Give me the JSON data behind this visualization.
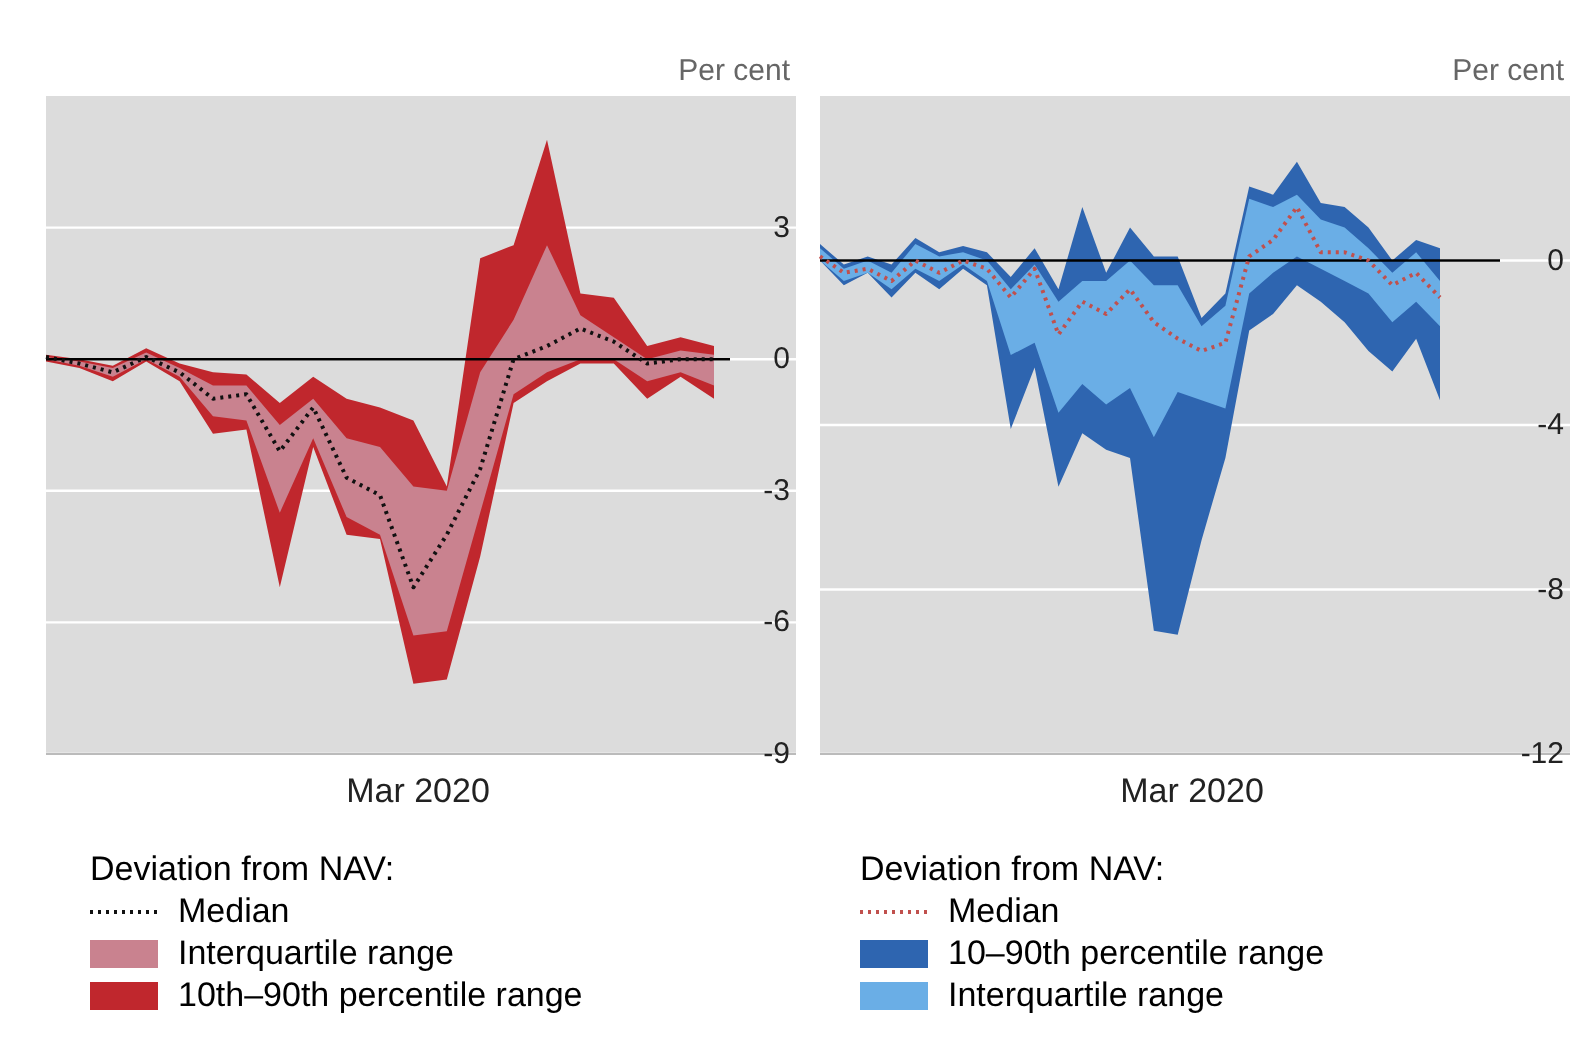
{
  "chart_data": [
    {
      "type": "area",
      "ylabel": "Per cent",
      "xlabel": "Mar 2020",
      "legend_title": "Deviation from NAV:",
      "legend": "bottom",
      "grid": true,
      "categories": [
        null,
        null,
        null,
        null,
        null,
        null,
        null,
        null,
        null,
        null,
        null,
        null,
        null,
        null,
        null,
        null,
        null,
        null,
        null,
        null,
        null
      ],
      "ylim": [
        -9,
        6
      ],
      "yticks": [
        -9,
        -6,
        -3,
        0,
        3
      ],
      "ref_lines": [
        {
          "axis": "y",
          "value": 0,
          "color": "#000000"
        }
      ],
      "series": [
        {
          "name": "Median",
          "type": "line",
          "line_style": "dotted",
          "color": "#111111",
          "values": [
            0.05,
            -0.1,
            -0.3,
            0.05,
            -0.3,
            -0.9,
            -0.8,
            -2.1,
            -1.1,
            -2.7,
            -3.1,
            -5.2,
            -4.0,
            -2.5,
            0,
            0.3,
            0.7,
            0.4,
            -0.1,
            0,
            0
          ]
        },
        {
          "name": "Interquartile range",
          "type": "line",
          "color": "#c9828f",
          "values": [
            null,
            null,
            null,
            null,
            null,
            null,
            null,
            null,
            null,
            null,
            null,
            null,
            null,
            null,
            null,
            null,
            null,
            null,
            null,
            null,
            null
          ],
          "lower": [
            0,
            -0.15,
            -0.4,
            0,
            -0.4,
            -1.3,
            -1.4,
            -3.5,
            -1.8,
            -3.6,
            -4.0,
            -6.3,
            -6.2,
            -3.5,
            -0.8,
            -0.3,
            0,
            0,
            -0.5,
            -0.3,
            -0.6
          ],
          "upper": [
            0.05,
            -0.05,
            -0.2,
            0.15,
            -0.2,
            -0.6,
            -0.6,
            -1.5,
            -0.9,
            -1.8,
            -2.0,
            -2.9,
            -3.0,
            -0.3,
            0.9,
            2.6,
            1.0,
            0.5,
            0,
            0.2,
            0.1
          ]
        },
        {
          "name": "10th–90th percentile range",
          "type": "line",
          "color": "#c0272d",
          "values": [
            null,
            null,
            null,
            null,
            null,
            null,
            null,
            null,
            null,
            null,
            null,
            null,
            null,
            null,
            null,
            null,
            null,
            null,
            null,
            null,
            null
          ],
          "lower": [
            -0.05,
            -0.2,
            -0.5,
            -0.05,
            -0.5,
            -1.7,
            -1.6,
            -5.2,
            -2.0,
            -4.0,
            -4.1,
            -7.4,
            -7.3,
            -4.5,
            -1.0,
            -0.5,
            -0.1,
            -0.1,
            -0.9,
            -0.4,
            -0.9
          ],
          "upper": [
            0.1,
            0,
            -0.15,
            0.25,
            -0.1,
            -0.3,
            -0.35,
            -1.0,
            -0.4,
            -0.9,
            -1.1,
            -1.4,
            -2.9,
            2.3,
            2.6,
            5.0,
            1.5,
            1.4,
            0.3,
            0.5,
            0.3
          ]
        }
      ]
    },
    {
      "type": "area",
      "ylabel": "Per cent",
      "xlabel": "Mar 2020",
      "legend_title": "Deviation from NAV:",
      "legend": "bottom",
      "grid": true,
      "categories": [
        null,
        null,
        null,
        null,
        null,
        null,
        null,
        null,
        null,
        null,
        null,
        null,
        null,
        null,
        null,
        null,
        null,
        null,
        null,
        null,
        null,
        null,
        null,
        null,
        null,
        null,
        null
      ],
      "ylim": [
        -12,
        4
      ],
      "yticks": [
        -12,
        -8,
        -4,
        0
      ],
      "ref_lines": [
        {
          "axis": "y",
          "value": 0,
          "color": "#000000"
        }
      ],
      "series": [
        {
          "name": "Median",
          "type": "line",
          "line_style": "dotted",
          "color": "#c0504d",
          "values": [
            0.1,
            -0.3,
            -0.2,
            -0.5,
            0,
            -0.3,
            0,
            -0.2,
            -0.9,
            -0.2,
            -1.8,
            -1.0,
            -1.3,
            -0.7,
            -1.5,
            -1.9,
            -2.2,
            -2.0,
            0.1,
            0.5,
            1.3,
            0.2,
            0.2,
            0,
            -0.6,
            -0.3,
            -0.9
          ]
        },
        {
          "name": "10–90th percentile range",
          "type": "line",
          "color": "#2e65b0",
          "values": [
            null,
            null,
            null,
            null,
            null,
            null,
            null,
            null,
            null,
            null,
            null,
            null,
            null,
            null,
            null,
            null,
            null,
            null,
            null,
            null,
            null,
            null,
            null,
            null,
            null,
            null,
            null
          ],
          "lower": [
            0,
            -0.6,
            -0.3,
            -0.9,
            -0.3,
            -0.7,
            -0.2,
            -0.6,
            -4.1,
            -2.6,
            -5.5,
            -4.2,
            -4.6,
            -4.8,
            -9.0,
            -9.1,
            -6.8,
            -4.8,
            -1.7,
            -1.3,
            -0.6,
            -1.0,
            -1.5,
            -2.2,
            -2.7,
            -1.9,
            -3.4
          ],
          "upper": [
            0.4,
            -0.1,
            0.1,
            -0.1,
            0.55,
            0.2,
            0.35,
            0.2,
            -0.4,
            0.3,
            -0.7,
            1.3,
            -0.3,
            0.8,
            0.1,
            0.1,
            -1.4,
            -0.8,
            1.8,
            1.6,
            2.4,
            1.4,
            1.3,
            0.8,
            0,
            0.5,
            0.3
          ]
        },
        {
          "name": "Interquartile range",
          "type": "line",
          "color": "#6aaee6",
          "values": [
            null,
            null,
            null,
            null,
            null,
            null,
            null,
            null,
            null,
            null,
            null,
            null,
            null,
            null,
            null,
            null,
            null,
            null,
            null,
            null,
            null,
            null,
            null,
            null,
            null,
            null,
            null
          ],
          "lower": [
            0,
            -0.5,
            -0.3,
            -0.7,
            -0.2,
            -0.5,
            -0.1,
            -0.5,
            -2.3,
            -2.0,
            -3.7,
            -3.0,
            -3.5,
            -3.1,
            -4.3,
            -3.2,
            -3.4,
            -3.6,
            -0.8,
            -0.3,
            0.1,
            -0.2,
            -0.5,
            -0.8,
            -1.5,
            -1.0,
            -1.6
          ],
          "upper": [
            0.3,
            -0.2,
            0,
            -0.3,
            0.4,
            0.1,
            0.2,
            0,
            -0.7,
            -0.1,
            -1.0,
            -0.5,
            -0.5,
            0,
            -0.6,
            -0.6,
            -1.6,
            -1.1,
            1.5,
            1.3,
            1.6,
            1.0,
            0.8,
            0.3,
            -0.3,
            0.2,
            -0.5
          ]
        }
      ]
    }
  ]
}
